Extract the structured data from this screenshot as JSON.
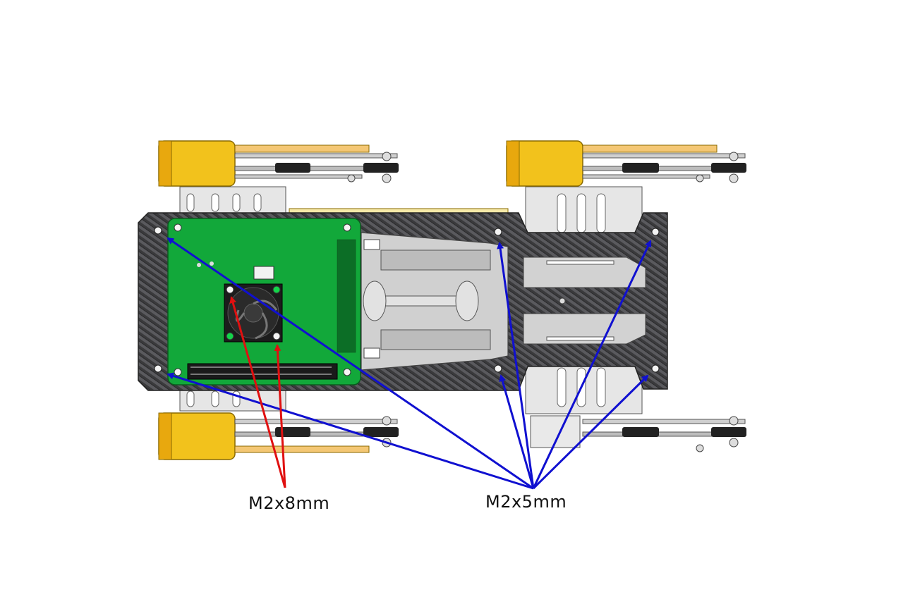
{
  "callouts": {
    "screw_8mm": {
      "text": "M2x8mm",
      "color": "#e01010"
    },
    "screw_5mm": {
      "text": "M2x5mm",
      "color": "#1010d0"
    }
  },
  "colors": {
    "carbon_plate": "#3c3c3e",
    "pcb": "#12a83a",
    "motor": "#f2c21c",
    "aluminium": "#e6e6e6"
  }
}
